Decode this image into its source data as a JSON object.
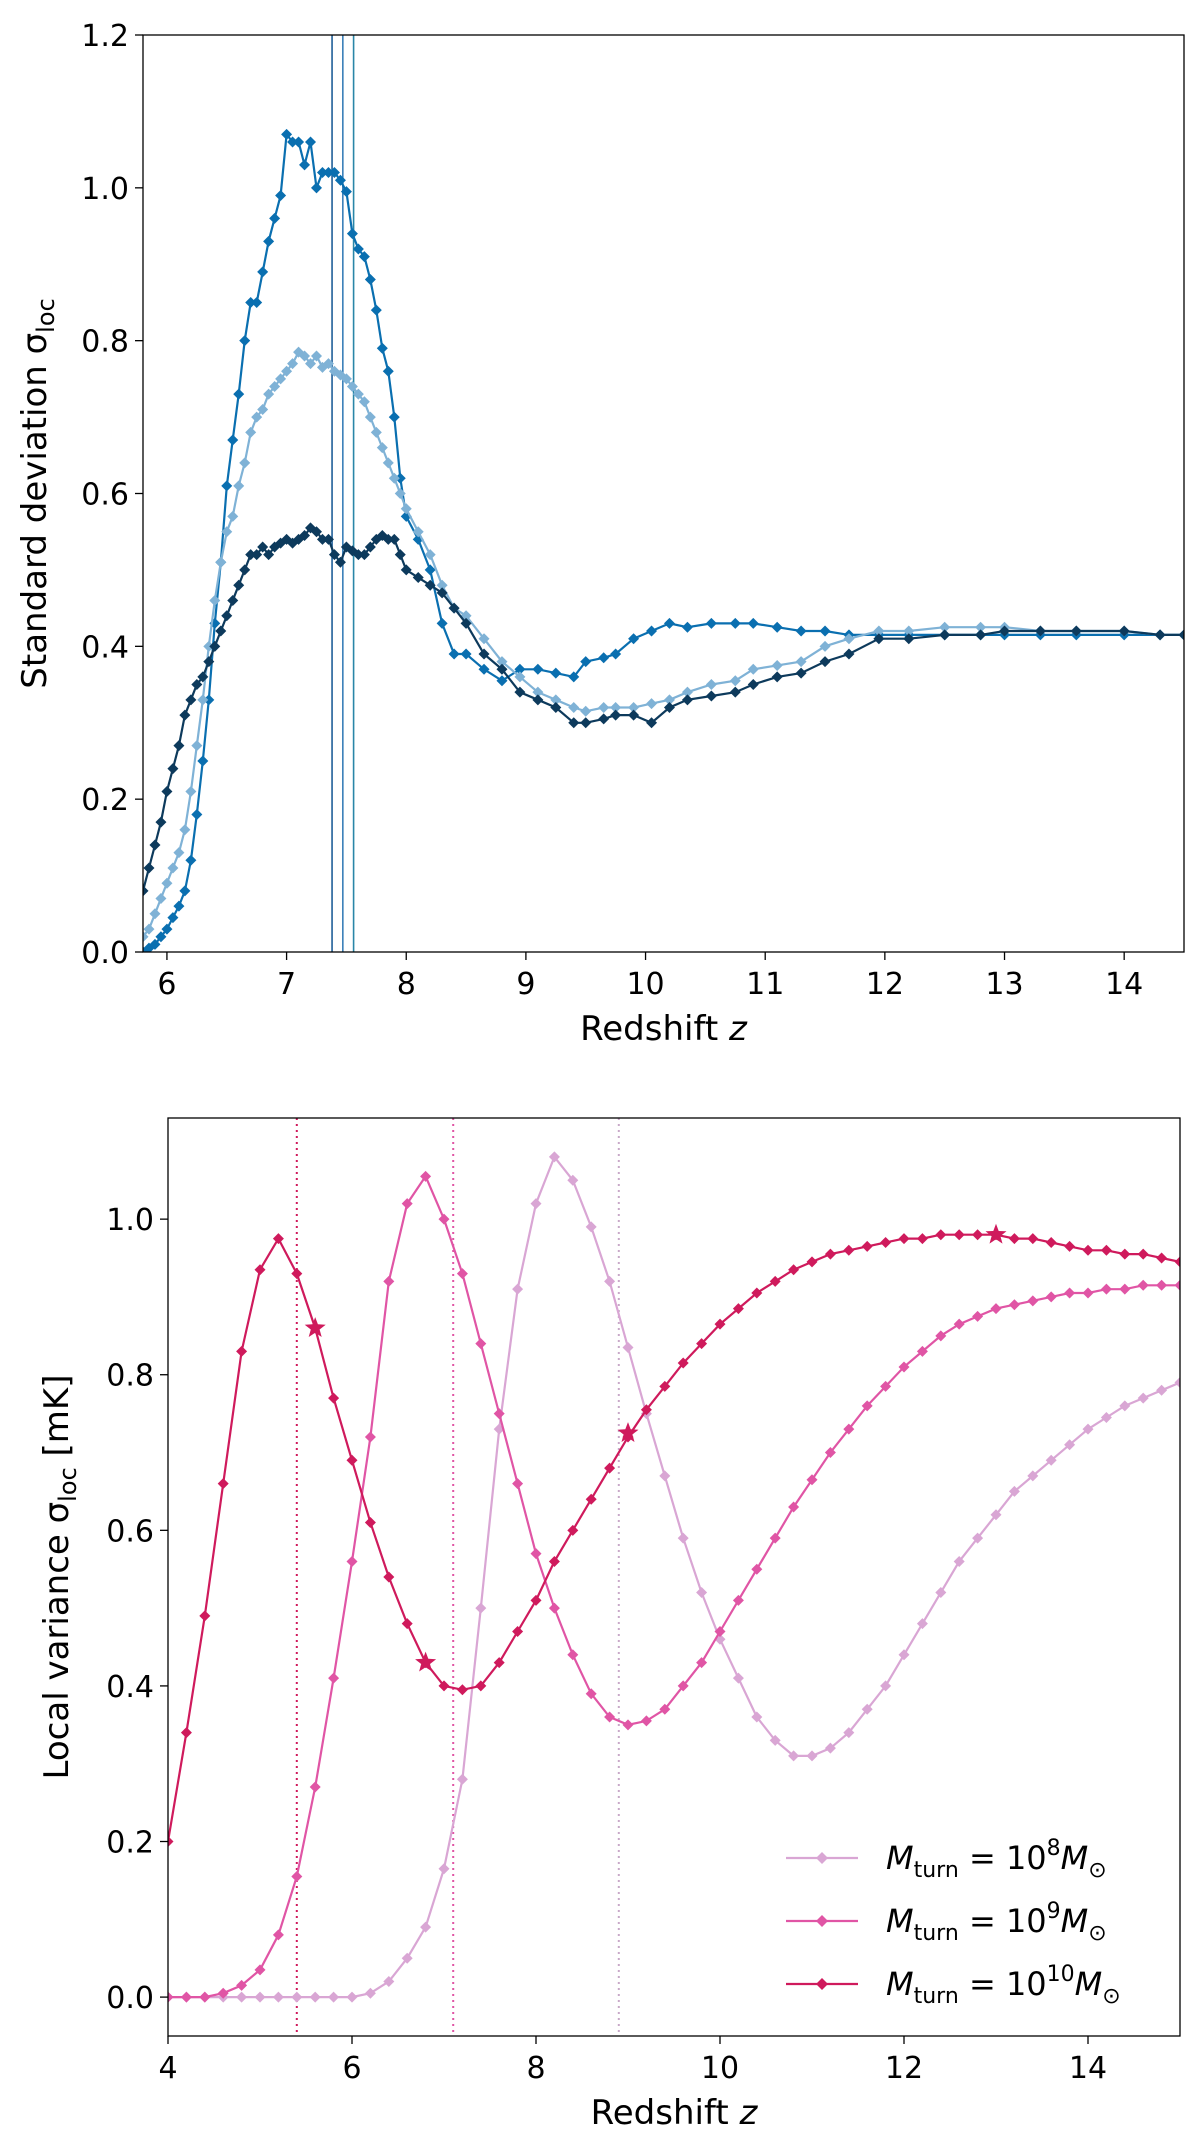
{
  "chart_data": [
    {
      "type": "line",
      "xlabel": "Redshift z",
      "ylabel": "Standard deviation σloc",
      "ylabel_main": "Standard deviation σ",
      "ylabel_sub": "loc",
      "xlabel_main": "Redshift ",
      "xlabel_var": "z",
      "xlim": [
        5.8,
        14.5
      ],
      "ylim": [
        0.0,
        1.2
      ],
      "xticks": [
        6,
        7,
        8,
        9,
        10,
        11,
        12,
        13,
        14
      ],
      "yticks": [
        "0.0",
        "0.2",
        "0.4",
        "0.6",
        "0.8",
        "1.0",
        "1.2"
      ],
      "vlines": [
        {
          "x": 7.38,
          "color": "#1f5f99"
        },
        {
          "x": 7.47,
          "color": "#3a7fb8"
        },
        {
          "x": 7.56,
          "color": "#2a86a8"
        }
      ],
      "series": [
        {
          "name": "top-series-a",
          "color": "#0a6fb0",
          "x": [
            5.8,
            5.85,
            5.9,
            5.95,
            6.0,
            6.05,
            6.1,
            6.15,
            6.2,
            6.25,
            6.3,
            6.35,
            6.4,
            6.45,
            6.5,
            6.55,
            6.6,
            6.65,
            6.7,
            6.75,
            6.8,
            6.85,
            6.9,
            6.95,
            7.0,
            7.05,
            7.1,
            7.15,
            7.2,
            7.25,
            7.3,
            7.35,
            7.4,
            7.45,
            7.5,
            7.55,
            7.6,
            7.65,
            7.7,
            7.75,
            7.8,
            7.85,
            7.9,
            7.95,
            8.0,
            8.1,
            8.2,
            8.3,
            8.4,
            8.5,
            8.65,
            8.8,
            8.95,
            9.1,
            9.25,
            9.4,
            9.5,
            9.65,
            9.75,
            9.9,
            10.05,
            10.2,
            10.35,
            10.55,
            10.75,
            10.9,
            11.1,
            11.3,
            11.5,
            11.7,
            11.95,
            12.2,
            12.5,
            12.8,
            13.0,
            13.3,
            13.6,
            14.0,
            14.3,
            14.5
          ],
          "y": [
            0.0,
            0.005,
            0.01,
            0.02,
            0.03,
            0.045,
            0.06,
            0.08,
            0.12,
            0.18,
            0.25,
            0.33,
            0.43,
            0.51,
            0.61,
            0.67,
            0.73,
            0.8,
            0.85,
            0.85,
            0.89,
            0.93,
            0.96,
            0.99,
            1.07,
            1.06,
            1.06,
            1.03,
            1.06,
            1.0,
            1.02,
            1.02,
            1.02,
            1.01,
            0.995,
            0.94,
            0.92,
            0.91,
            0.88,
            0.84,
            0.79,
            0.76,
            0.7,
            0.62,
            0.57,
            0.54,
            0.5,
            0.43,
            0.39,
            0.39,
            0.37,
            0.355,
            0.37,
            0.37,
            0.365,
            0.36,
            0.38,
            0.385,
            0.39,
            0.41,
            0.42,
            0.43,
            0.425,
            0.43,
            0.43,
            0.43,
            0.425,
            0.42,
            0.42,
            0.415,
            0.415,
            0.415,
            0.415,
            0.415,
            0.415,
            0.415,
            0.415,
            0.415,
            0.415,
            0.415
          ]
        },
        {
          "name": "top-series-b",
          "color": "#7fb2d6",
          "x": [
            5.8,
            5.85,
            5.9,
            5.95,
            6.0,
            6.05,
            6.1,
            6.15,
            6.2,
            6.25,
            6.3,
            6.35,
            6.4,
            6.45,
            6.5,
            6.55,
            6.6,
            6.65,
            6.7,
            6.75,
            6.8,
            6.85,
            6.9,
            6.95,
            7.0,
            7.05,
            7.1,
            7.15,
            7.2,
            7.25,
            7.3,
            7.35,
            7.4,
            7.45,
            7.5,
            7.55,
            7.6,
            7.65,
            7.7,
            7.75,
            7.8,
            7.85,
            7.9,
            7.95,
            8.0,
            8.1,
            8.2,
            8.3,
            8.4,
            8.5,
            8.65,
            8.8,
            8.95,
            9.1,
            9.25,
            9.4,
            9.5,
            9.65,
            9.75,
            9.9,
            10.05,
            10.2,
            10.35,
            10.55,
            10.75,
            10.9,
            11.1,
            11.3,
            11.5,
            11.7,
            11.95,
            12.2,
            12.5,
            12.8,
            13.0,
            13.3,
            13.6,
            14.0,
            14.3,
            14.5
          ],
          "y": [
            0.02,
            0.03,
            0.05,
            0.07,
            0.09,
            0.11,
            0.13,
            0.16,
            0.21,
            0.27,
            0.33,
            0.4,
            0.46,
            0.51,
            0.55,
            0.57,
            0.61,
            0.64,
            0.68,
            0.7,
            0.71,
            0.73,
            0.74,
            0.75,
            0.76,
            0.77,
            0.785,
            0.78,
            0.77,
            0.78,
            0.765,
            0.77,
            0.76,
            0.755,
            0.75,
            0.74,
            0.73,
            0.72,
            0.7,
            0.68,
            0.66,
            0.64,
            0.62,
            0.6,
            0.58,
            0.55,
            0.52,
            0.48,
            0.45,
            0.44,
            0.41,
            0.38,
            0.36,
            0.34,
            0.33,
            0.32,
            0.315,
            0.32,
            0.32,
            0.32,
            0.325,
            0.33,
            0.34,
            0.35,
            0.355,
            0.37,
            0.375,
            0.38,
            0.4,
            0.41,
            0.42,
            0.42,
            0.425,
            0.425,
            0.425,
            0.42,
            0.42,
            0.42,
            0.415,
            0.415
          ]
        },
        {
          "name": "top-series-c",
          "color": "#0d3a5c",
          "x": [
            5.8,
            5.85,
            5.9,
            5.95,
            6.0,
            6.05,
            6.1,
            6.15,
            6.2,
            6.25,
            6.3,
            6.35,
            6.4,
            6.45,
            6.5,
            6.55,
            6.6,
            6.65,
            6.7,
            6.75,
            6.8,
            6.85,
            6.9,
            6.95,
            7.0,
            7.05,
            7.1,
            7.15,
            7.2,
            7.25,
            7.3,
            7.35,
            7.4,
            7.45,
            7.5,
            7.55,
            7.6,
            7.65,
            7.7,
            7.75,
            7.8,
            7.85,
            7.9,
            7.95,
            8.0,
            8.1,
            8.2,
            8.3,
            8.4,
            8.5,
            8.65,
            8.8,
            8.95,
            9.1,
            9.25,
            9.4,
            9.5,
            9.65,
            9.75,
            9.9,
            10.05,
            10.2,
            10.35,
            10.55,
            10.75,
            10.9,
            11.1,
            11.3,
            11.5,
            11.7,
            11.95,
            12.2,
            12.5,
            12.8,
            13.0,
            13.3,
            13.6,
            14.0,
            14.3,
            14.5
          ],
          "y": [
            0.08,
            0.11,
            0.14,
            0.17,
            0.21,
            0.24,
            0.27,
            0.31,
            0.33,
            0.35,
            0.36,
            0.38,
            0.4,
            0.42,
            0.44,
            0.46,
            0.48,
            0.5,
            0.52,
            0.52,
            0.53,
            0.52,
            0.53,
            0.535,
            0.54,
            0.535,
            0.54,
            0.545,
            0.555,
            0.55,
            0.54,
            0.54,
            0.52,
            0.51,
            0.53,
            0.525,
            0.52,
            0.52,
            0.53,
            0.54,
            0.545,
            0.54,
            0.54,
            0.52,
            0.5,
            0.49,
            0.48,
            0.47,
            0.45,
            0.43,
            0.39,
            0.37,
            0.34,
            0.33,
            0.32,
            0.3,
            0.3,
            0.305,
            0.31,
            0.31,
            0.3,
            0.32,
            0.33,
            0.335,
            0.34,
            0.35,
            0.36,
            0.365,
            0.38,
            0.39,
            0.41,
            0.41,
            0.415,
            0.415,
            0.42,
            0.42,
            0.42,
            0.42,
            0.415,
            0.415
          ]
        }
      ]
    },
    {
      "type": "line",
      "xlabel": "Redshift z",
      "ylabel": "Local variance σloc [mK]",
      "ylabel_main": "Local variance σ",
      "ylabel_sub": "loc",
      "ylabel_unit": " [mK]",
      "xlabel_main": "Redshift ",
      "xlabel_var": "z",
      "xlim": [
        4,
        15
      ],
      "ylim": [
        -0.05,
        1.13
      ],
      "xticks": [
        4,
        6,
        8,
        10,
        12,
        14
      ],
      "yticks": [
        "0.0",
        "0.2",
        "0.4",
        "0.6",
        "0.8",
        "1.0"
      ],
      "vlines": [
        {
          "x": 5.4,
          "color": "#cf1a5c"
        },
        {
          "x": 7.1,
          "color": "#e055a5"
        },
        {
          "x": 8.9,
          "color": "#c8a8c8"
        }
      ],
      "legend": {
        "position": "lower-right",
        "entries": [
          {
            "label": "Mturn = 10^8 M⊙",
            "color": "#d9a6d4",
            "text_prefix": "M",
            "text_sub": "turn",
            "text_mid": " = 10",
            "text_exp": "8",
            "text_tail": "M",
            "text_sun": "⊙"
          },
          {
            "label": "Mturn = 10^9 M⊙",
            "color": "#e055a5",
            "text_prefix": "M",
            "text_sub": "turn",
            "text_mid": " = 10",
            "text_exp": "9",
            "text_tail": "M",
            "text_sun": "⊙"
          },
          {
            "label": "Mturn = 10^10 M⊙",
            "color": "#cf1a5c",
            "text_prefix": "M",
            "text_sub": "turn",
            "text_mid": " = 10",
            "text_exp": "10",
            "text_tail": "M",
            "text_sun": "⊙"
          }
        ]
      },
      "series": [
        {
          "name": "Mturn = 10^8 M⊙",
          "color": "#d9a6d4",
          "x": [
            4.0,
            4.2,
            4.4,
            4.6,
            4.8,
            5.0,
            5.2,
            5.4,
            5.6,
            5.8,
            6.0,
            6.2,
            6.4,
            6.6,
            6.8,
            7.0,
            7.2,
            7.4,
            7.6,
            7.8,
            8.0,
            8.2,
            8.4,
            8.6,
            8.8,
            9.0,
            9.2,
            9.4,
            9.6,
            9.8,
            10.0,
            10.2,
            10.4,
            10.6,
            10.8,
            11.0,
            11.2,
            11.4,
            11.6,
            11.8,
            12.0,
            12.2,
            12.4,
            12.6,
            12.8,
            13.0,
            13.2,
            13.4,
            13.6,
            13.8,
            14.0,
            14.2,
            14.4,
            14.6,
            14.8,
            15.0
          ],
          "y": [
            0,
            0,
            0,
            0,
            0,
            0,
            0,
            0,
            0,
            0,
            0,
            0.005,
            0.02,
            0.05,
            0.09,
            0.165,
            0.28,
            0.5,
            0.73,
            0.91,
            1.02,
            1.08,
            1.05,
            0.99,
            0.92,
            0.835,
            0.75,
            0.67,
            0.59,
            0.52,
            0.46,
            0.41,
            0.36,
            0.33,
            0.31,
            0.31,
            0.32,
            0.34,
            0.37,
            0.4,
            0.44,
            0.48,
            0.52,
            0.56,
            0.59,
            0.62,
            0.65,
            0.67,
            0.69,
            0.71,
            0.73,
            0.745,
            0.76,
            0.77,
            0.78,
            0.79
          ],
          "stars_x": [],
          "stars_y": []
        },
        {
          "name": "Mturn = 10^9 M⊙",
          "color": "#e055a5",
          "x": [
            4.0,
            4.2,
            4.4,
            4.6,
            4.8,
            5.0,
            5.2,
            5.4,
            5.6,
            5.8,
            6.0,
            6.2,
            6.4,
            6.6,
            6.8,
            7.0,
            7.2,
            7.4,
            7.6,
            7.8,
            8.0,
            8.2,
            8.4,
            8.6,
            8.8,
            9.0,
            9.2,
            9.4,
            9.6,
            9.8,
            10.0,
            10.2,
            10.4,
            10.6,
            10.8,
            11.0,
            11.2,
            11.4,
            11.6,
            11.8,
            12.0,
            12.2,
            12.4,
            12.6,
            12.8,
            13.0,
            13.2,
            13.4,
            13.6,
            13.8,
            14.0,
            14.2,
            14.4,
            14.6,
            14.8,
            15.0
          ],
          "y": [
            0,
            0,
            0,
            0.005,
            0.015,
            0.035,
            0.08,
            0.155,
            0.27,
            0.41,
            0.56,
            0.72,
            0.92,
            1.02,
            1.055,
            1.0,
            0.93,
            0.84,
            0.75,
            0.66,
            0.57,
            0.5,
            0.44,
            0.39,
            0.36,
            0.35,
            0.355,
            0.37,
            0.4,
            0.43,
            0.47,
            0.51,
            0.55,
            0.59,
            0.63,
            0.665,
            0.7,
            0.73,
            0.76,
            0.785,
            0.81,
            0.83,
            0.85,
            0.865,
            0.875,
            0.885,
            0.89,
            0.895,
            0.9,
            0.905,
            0.905,
            0.91,
            0.91,
            0.915,
            0.915,
            0.915
          ],
          "stars_x": [],
          "stars_y": []
        },
        {
          "name": "Mturn = 10^10 M⊙",
          "color": "#cf1a5c",
          "x": [
            4.0,
            4.2,
            4.4,
            4.6,
            4.8,
            5.0,
            5.2,
            5.4,
            5.6,
            5.8,
            6.0,
            6.2,
            6.4,
            6.6,
            6.8,
            7.0,
            7.2,
            7.4,
            7.6,
            7.8,
            8.0,
            8.2,
            8.4,
            8.6,
            8.8,
            9.0,
            9.2,
            9.4,
            9.6,
            9.8,
            10.0,
            10.2,
            10.4,
            10.6,
            10.8,
            11.0,
            11.2,
            11.4,
            11.6,
            11.8,
            12.0,
            12.2,
            12.4,
            12.6,
            12.8,
            13.0,
            13.2,
            13.4,
            13.6,
            13.8,
            14.0,
            14.2,
            14.4,
            14.6,
            14.8,
            15.0
          ],
          "y": [
            0.2,
            0.34,
            0.49,
            0.66,
            0.83,
            0.935,
            0.975,
            0.93,
            0.86,
            0.77,
            0.69,
            0.61,
            0.54,
            0.48,
            0.43,
            0.4,
            0.395,
            0.4,
            0.43,
            0.47,
            0.51,
            0.56,
            0.6,
            0.64,
            0.68,
            0.72,
            0.755,
            0.785,
            0.815,
            0.84,
            0.865,
            0.885,
            0.905,
            0.92,
            0.935,
            0.945,
            0.955,
            0.96,
            0.965,
            0.97,
            0.975,
            0.975,
            0.98,
            0.98,
            0.98,
            0.98,
            0.975,
            0.975,
            0.97,
            0.965,
            0.96,
            0.96,
            0.955,
            0.955,
            0.95,
            0.945
          ],
          "stars_x": [
            5.6,
            6.8,
            9.0,
            13.0
          ],
          "stars_y": [
            0.86,
            0.43,
            0.725,
            0.98
          ]
        }
      ]
    }
  ]
}
